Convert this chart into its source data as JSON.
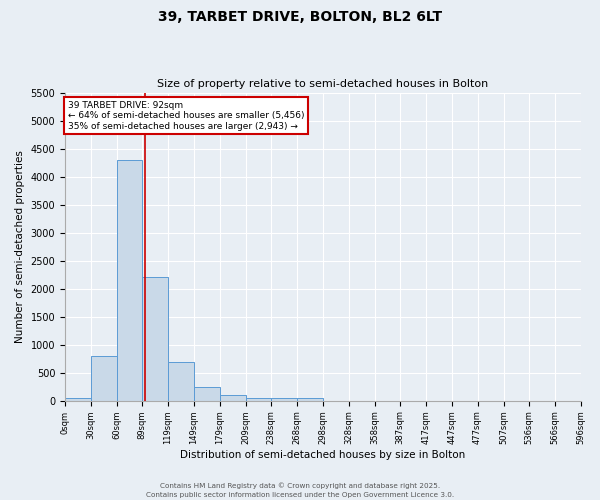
{
  "title": "39, TARBET DRIVE, BOLTON, BL2 6LT",
  "subtitle": "Size of property relative to semi-detached houses in Bolton",
  "xlabel": "Distribution of semi-detached houses by size in Bolton",
  "ylabel": "Number of semi-detached properties",
  "bin_edges": [
    0,
    30,
    60,
    89,
    119,
    149,
    179,
    209,
    238,
    268,
    298,
    328,
    358,
    387,
    417,
    447,
    477,
    507,
    536,
    566,
    596
  ],
  "bin_labels": [
    "0sqm",
    "30sqm",
    "60sqm",
    "89sqm",
    "119sqm",
    "149sqm",
    "179sqm",
    "209sqm",
    "238sqm",
    "268sqm",
    "298sqm",
    "328sqm",
    "358sqm",
    "387sqm",
    "417sqm",
    "447sqm",
    "477sqm",
    "507sqm",
    "536sqm",
    "566sqm",
    "596sqm"
  ],
  "counts": [
    50,
    800,
    4300,
    2200,
    700,
    250,
    100,
    50,
    50,
    50,
    0,
    0,
    0,
    0,
    0,
    0,
    0,
    0,
    0,
    0
  ],
  "bar_color": "#c9d9e8",
  "bar_edge_color": "#5b9bd5",
  "property_size": 92,
  "red_line_color": "#cc0000",
  "annotation_line1": "39 TARBET DRIVE: 92sqm",
  "annotation_line2": "← 64% of semi-detached houses are smaller (5,456)",
  "annotation_line3": "35% of semi-detached houses are larger (2,943) →",
  "annotation_box_color": "#cc0000",
  "ylim": [
    0,
    5500
  ],
  "yticks": [
    0,
    500,
    1000,
    1500,
    2000,
    2500,
    3000,
    3500,
    4000,
    4500,
    5000,
    5500
  ],
  "footer1": "Contains HM Land Registry data © Crown copyright and database right 2025.",
  "footer2": "Contains public sector information licensed under the Open Government Licence 3.0.",
  "background_color": "#e8eef4",
  "plot_background": "#e8eef4",
  "grid_color": "#ffffff",
  "title_fontsize": 10,
  "subtitle_fontsize": 8
}
